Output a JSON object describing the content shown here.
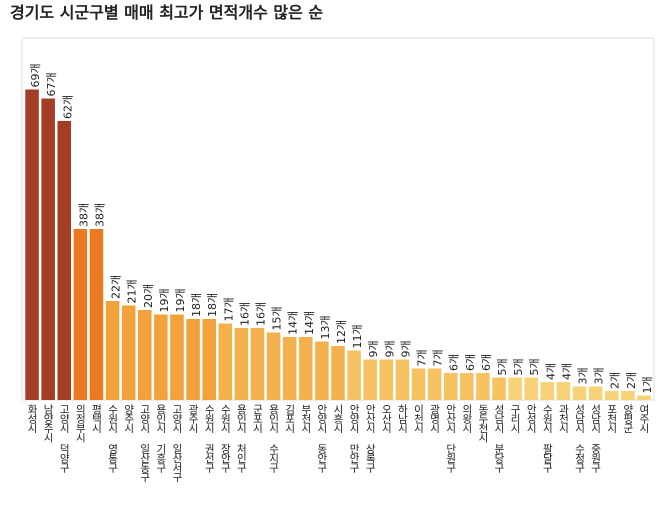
{
  "chart_data": {
    "type": "bar",
    "title": "경기도 시군구별 매매 최고가 면적개수 많은 순",
    "categories": [
      "화성시",
      "남양주시",
      "고양시 덕양구",
      "의정부시",
      "평택시",
      "수원시 영통구",
      "양주시",
      "고양시 일산동구",
      "용인시 기흥구",
      "고양시 일산서구",
      "광주시",
      "수원시 권선구",
      "수원시 장안구",
      "용인시 처인구",
      "군포시",
      "용인시 수지구",
      "김포시",
      "부천시",
      "안양시 동안구",
      "시흥시",
      "안양시 만안구",
      "안산시 상록구",
      "오산시",
      "하남시",
      "이천시",
      "광명시",
      "안산시 단원구",
      "의왕시",
      "동두천시",
      "성남시 분당구",
      "구리시",
      "안성시",
      "수원시 팔달구",
      "과천시",
      "성남시 수정구",
      "성남시 중원구",
      "포천시",
      "양평군",
      "여주시"
    ],
    "values": [
      69,
      67,
      62,
      38,
      38,
      22,
      21,
      20,
      19,
      19,
      18,
      18,
      17,
      16,
      16,
      15,
      14,
      14,
      13,
      12,
      11,
      9,
      9,
      9,
      7,
      7,
      6,
      6,
      6,
      5,
      5,
      5,
      4,
      4,
      3,
      3,
      2,
      2,
      1
    ],
    "value_labels": [
      "69개",
      "67개",
      "62개",
      "38개",
      "38개",
      "22개",
      "21개",
      "20개",
      "19개",
      "19개",
      "18개",
      "18개",
      "17개",
      "16개",
      "16개",
      "15개",
      "14개",
      "14개",
      "13개",
      "12개",
      "11개",
      "9개",
      "9개",
      "9개",
      "7개",
      "7개",
      "6개",
      "6개",
      "6개",
      "5개",
      "5개",
      "5개",
      "4개",
      "4개",
      "3개",
      "3개",
      "2개",
      "2개",
      "1개"
    ],
    "colors": [
      "#a33d26",
      "#a33d26",
      "#a33d26",
      "#e97a22",
      "#e97a22",
      "#f3a13a",
      "#f3a13a",
      "#f3a13a",
      "#f3a13a",
      "#f3a13a",
      "#f3a13a",
      "#f3a13a",
      "#f5b14d",
      "#f5b14d",
      "#f5b14d",
      "#f5b14d",
      "#f5b14d",
      "#f5b14d",
      "#f5b14d",
      "#f5b14d",
      "#f7c262",
      "#f7c262",
      "#f7c262",
      "#f7c262",
      "#f7c262",
      "#f7c262",
      "#f7c262",
      "#f7c262",
      "#f7c262",
      "#f7c262",
      "#f8d276",
      "#f8d276",
      "#f8d276",
      "#f8d276",
      "#f8d276",
      "#f8d276",
      "#f8d276",
      "#f8d276",
      "#f8d276"
    ],
    "ylim": [
      0,
      80
    ]
  }
}
